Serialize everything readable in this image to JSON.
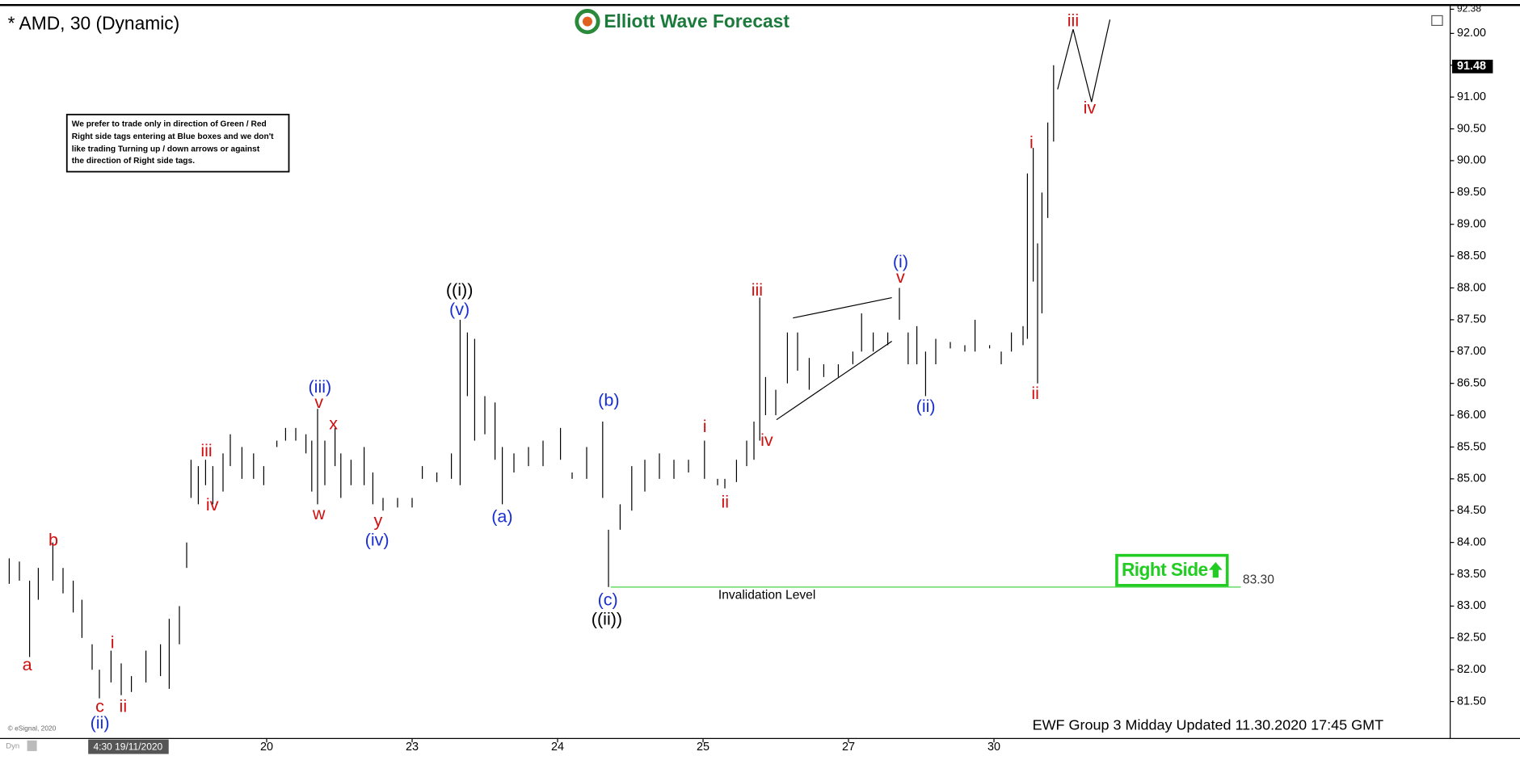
{
  "header": {
    "title": "* AMD, 30 (Dynamic)",
    "logo": "Elliott Wave Forecast"
  },
  "note": {
    "lines": [
      "We prefer to trade only in direction of Green / Red",
      "Right side tags entering at Blue boxes and we don't",
      "like trading Turning up / down arrows or against",
      "the direction of Right side tags."
    ]
  },
  "footer": "EWF Group 3 Midday Updated 11.30.2020 17:45 GMT",
  "copyright": "© eSignal, 2020",
  "cursor_label": "4:30 19/11/2020",
  "mode_label": "Dyn",
  "chart_data": {
    "type": "ohlc",
    "color": "#000000",
    "x": [
      -0.77,
      -0.7,
      -0.63,
      -0.57,
      -0.47,
      -0.4,
      -0.33,
      -0.27,
      -0.2,
      -0.15,
      -0.07,
      0,
      0.07,
      0.17,
      0.27,
      0.33,
      0.4,
      0.45,
      0.48,
      0.53,
      0.58,
      0.63,
      0.7,
      0.75,
      0.83,
      0.91,
      0.98,
      1.07,
      1.13,
      1.2,
      1.27,
      1.31,
      1.35,
      1.4,
      1.47,
      1.51,
      1.58,
      1.67,
      1.73,
      1.8,
      1.9,
      2,
      2.07,
      2.17,
      2.27,
      2.33,
      2.38,
      2.43,
      2.5,
      2.57,
      2.62,
      2.7,
      2.8,
      2.9,
      3.02,
      3.1,
      3.2,
      3.31,
      3.35,
      3.43,
      3.51,
      3.6,
      3.7,
      3.8,
      3.9,
      4.01,
      4.1,
      4.15,
      4.23,
      4.3,
      4.35,
      4.39,
      4.43,
      4.5,
      4.58,
      4.65,
      4.73,
      4.83,
      4.93,
      5.03,
      5.09,
      5.17,
      5.27,
      5.35,
      5.41,
      5.47,
      5.53,
      5.6,
      5.7,
      5.8,
      5.87,
      5.97,
      6.05,
      6.12,
      6.2,
      6.23,
      6.27,
      6.3,
      6.33,
      6.37,
      6.41
    ],
    "high": [
      83.75,
      83.7,
      83.4,
      83.6,
      84.0,
      83.6,
      83.4,
      83.1,
      82.4,
      82.0,
      82.3,
      82.1,
      81.9,
      82.3,
      82.4,
      82.8,
      83.0,
      84.0,
      85.3,
      85.2,
      85.3,
      85.2,
      85.4,
      85.7,
      85.5,
      85.4,
      85.2,
      85.6,
      85.8,
      85.8,
      85.7,
      85.6,
      86.1,
      85.6,
      85.8,
      85.4,
      85.3,
      85.5,
      85.1,
      84.7,
      84.7,
      84.7,
      85.2,
      85.1,
      85.4,
      87.5,
      87.3,
      87.2,
      86.3,
      86.2,
      85.5,
      85.4,
      85.5,
      85.6,
      85.8,
      85.1,
      85.5,
      85.9,
      84.2,
      84.6,
      85.2,
      85.3,
      85.4,
      85.3,
      85.3,
      85.6,
      85.0,
      85.0,
      85.3,
      85.6,
      85.9,
      87.85,
      86.6,
      86.4,
      87.3,
      87.3,
      86.9,
      86.8,
      86.8,
      87.0,
      87.6,
      87.3,
      87.3,
      88.0,
      87.3,
      87.4,
      87.0,
      87.2,
      87.15,
      87.1,
      87.5,
      87.1,
      87.0,
      87.3,
      87.4,
      89.8,
      90.2,
      88.7,
      89.5,
      90.6,
      91.5
    ],
    "low": [
      83.35,
      83.4,
      82.2,
      83.1,
      83.4,
      83.2,
      82.9,
      82.5,
      82.0,
      81.55,
      81.8,
      81.6,
      81.65,
      81.8,
      81.9,
      81.7,
      82.4,
      83.6,
      84.7,
      84.6,
      84.9,
      84.6,
      84.8,
      85.2,
      85.0,
      85.0,
      84.9,
      85.5,
      85.6,
      85.6,
      85.4,
      84.8,
      84.6,
      84.9,
      85.2,
      84.7,
      84.9,
      84.9,
      84.6,
      84.5,
      84.55,
      84.55,
      85.0,
      84.95,
      85.0,
      84.9,
      86.3,
      85.6,
      85.7,
      85.3,
      84.6,
      85.1,
      85.2,
      85.2,
      85.3,
      85.0,
      85.0,
      84.7,
      83.3,
      84.2,
      84.5,
      84.8,
      85.0,
      85.0,
      85.1,
      85.0,
      84.9,
      84.85,
      84.95,
      85.2,
      85.3,
      85.6,
      86.0,
      86.0,
      86.5,
      86.7,
      86.4,
      86.6,
      86.6,
      86.8,
      87.0,
      87.0,
      87.1,
      87.5,
      86.8,
      86.8,
      86.3,
      86.8,
      87.05,
      87.0,
      87.0,
      87.05,
      86.8,
      87.0,
      87.1,
      87.2,
      88.1,
      86.5,
      87.6,
      89.1,
      90.3
    ],
    "xlim": [
      -0.8,
      9.13
    ],
    "xticks": [
      {
        "value": 1,
        "label": "20"
      },
      {
        "value": 2,
        "label": "23"
      },
      {
        "value": 3,
        "label": "24"
      },
      {
        "value": 4,
        "label": "25"
      },
      {
        "value": 5,
        "label": "27"
      },
      {
        "value": 6,
        "label": "30"
      }
    ],
    "ylim": [
      80.95,
      92.4
    ],
    "yticks": [
      {
        "value": 81.5,
        "label": "81.50"
      },
      {
        "value": 82,
        "label": "82.00"
      },
      {
        "value": 82.5,
        "label": "82.50"
      },
      {
        "value": 83,
        "label": "83.00"
      },
      {
        "value": 83.5,
        "label": "83.50"
      },
      {
        "value": 84,
        "label": "84.00"
      },
      {
        "value": 84.5,
        "label": "84.50"
      },
      {
        "value": 85,
        "label": "85.00"
      },
      {
        "value": 85.5,
        "label": "85.50"
      },
      {
        "value": 86,
        "label": "86.00"
      },
      {
        "value": 86.5,
        "label": "86.50"
      },
      {
        "value": 87,
        "label": "87.00"
      },
      {
        "value": 87.5,
        "label": "87.50"
      },
      {
        "value": 88,
        "label": "88.00"
      },
      {
        "value": 88.5,
        "label": "88.50"
      },
      {
        "value": 89,
        "label": "89.00"
      },
      {
        "value": 89.5,
        "label": "89.50"
      },
      {
        "value": 90,
        "label": "90.00"
      },
      {
        "value": 90.5,
        "label": "90.50"
      },
      {
        "value": 91,
        "label": "91.00"
      },
      {
        "value": 91.5,
        "label": "91.50"
      },
      {
        "value": 92,
        "label": "92.00"
      }
    ],
    "price_tags": [
      {
        "value": 92.38,
        "label": "92.38"
      },
      {
        "value": 91.48,
        "label": "91.48"
      }
    ],
    "invalidation": {
      "value": 83.3,
      "label": "83.30",
      "text": "Invalidation Level",
      "color": "#7ee07e"
    },
    "right_side": {
      "text": "Right Side",
      "color": "#22cc22"
    },
    "annotations": [
      {
        "text": "a",
        "color": "#d01010"
      },
      {
        "text": "b",
        "color": "#d01010"
      },
      {
        "text": "c",
        "color": "#d01010"
      },
      {
        "text": "(ii)",
        "color": "#1a2fd0"
      },
      {
        "text": "i",
        "color": "#d01010"
      },
      {
        "text": "ii",
        "color": "#d01010"
      },
      {
        "text": "iii",
        "color": "#d01010"
      },
      {
        "text": "iv",
        "color": "#d01010"
      },
      {
        "text": "(iii)",
        "color": "#1a2fd0"
      },
      {
        "text": "v",
        "color": "#d01010"
      },
      {
        "text": "x",
        "color": "#d01010"
      },
      {
        "text": "w",
        "color": "#d01010"
      },
      {
        "text": "y",
        "color": "#d01010"
      },
      {
        "text": "(iv)",
        "color": "#1a2fd0"
      },
      {
        "text": "((i))",
        "color": "#000000"
      },
      {
        "text": "(v)",
        "color": "#1a2fd0"
      },
      {
        "text": "(a)",
        "color": "#1a2fd0"
      },
      {
        "text": "(b)",
        "color": "#1a2fd0"
      },
      {
        "text": "(c)",
        "color": "#1a2fd0"
      },
      {
        "text": "((ii))",
        "color": "#000000"
      },
      {
        "text": "i",
        "color": "#d01010"
      },
      {
        "text": "ii",
        "color": "#d01010"
      },
      {
        "text": "iii",
        "color": "#d01010"
      },
      {
        "text": "iv",
        "color": "#d01010"
      },
      {
        "text": "(i)",
        "color": "#1a2fd0"
      },
      {
        "text": "v",
        "color": "#d01010"
      },
      {
        "text": "(ii)",
        "color": "#1a2fd0"
      },
      {
        "text": "i",
        "color": "#d01010"
      },
      {
        "text": "ii",
        "color": "#d01010"
      },
      {
        "text": "iii",
        "color": "#d01010"
      },
      {
        "text": "iv",
        "color": "#d01010"
      }
    ]
  }
}
